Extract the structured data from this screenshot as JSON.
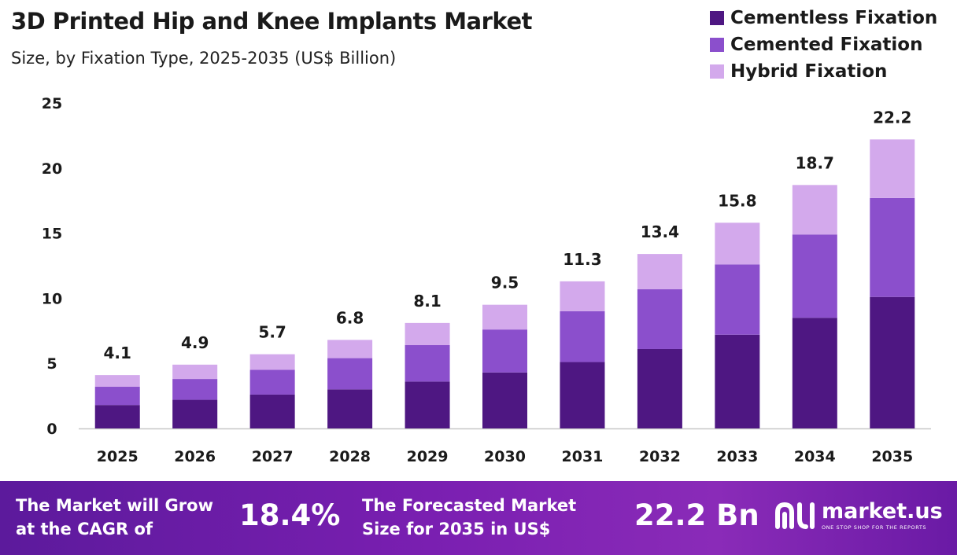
{
  "header": {
    "title": "3D Printed Hip and Knee Implants Market",
    "subtitle": "Size, by Fixation Type, 2025-2035 (US$ Billion)"
  },
  "legend": [
    {
      "label": "Cementless Fixation",
      "color": "#4e1782"
    },
    {
      "label": "Cemented Fixation",
      "color": "#8b4fcc"
    },
    {
      "label": "Hybrid Fixation",
      "color": "#d3a9ec"
    }
  ],
  "chart_data": {
    "type": "bar",
    "stacked": true,
    "title": "3D Printed Hip and Knee Implants Market",
    "subtitle": "Size, by Fixation Type, 2025-2035 (US$ Billion)",
    "categories": [
      "2025",
      "2026",
      "2027",
      "2028",
      "2029",
      "2030",
      "2031",
      "2032",
      "2033",
      "2034",
      "2035"
    ],
    "series": [
      {
        "name": "Cementless Fixation",
        "color": "#4e1782",
        "values": [
          1.8,
          2.2,
          2.6,
          3.0,
          3.6,
          4.3,
          5.1,
          6.1,
          7.2,
          8.5,
          10.1
        ]
      },
      {
        "name": "Cemented Fixation",
        "color": "#8b4fcc",
        "values": [
          1.4,
          1.6,
          1.9,
          2.4,
          2.8,
          3.3,
          3.9,
          4.6,
          5.4,
          6.4,
          7.6
        ]
      },
      {
        "name": "Hybrid Fixation",
        "color": "#d3a9ec",
        "values": [
          0.9,
          1.1,
          1.2,
          1.4,
          1.7,
          1.9,
          2.3,
          2.7,
          3.2,
          3.8,
          4.5
        ]
      }
    ],
    "totals": [
      "4.1",
      "4.9",
      "5.7",
      "6.8",
      "8.1",
      "9.5",
      "11.3",
      "13.4",
      "15.8",
      "18.7",
      "22.2"
    ],
    "y_ticks": [
      "0",
      "5",
      "10",
      "15",
      "20",
      "25"
    ],
    "ylim": [
      0,
      25
    ],
    "xlabel": "",
    "ylabel": "",
    "grid": false,
    "legend_position": "top-right"
  },
  "footer": {
    "cagr_label_line1": "The Market will Grow",
    "cagr_label_line2": "at the CAGR of",
    "cagr_value": "18.4%",
    "forecast_label_line1": "The Forecasted Market",
    "forecast_label_line2": "Size for 2035 in US$",
    "forecast_value": "22.2 Bn",
    "brand_name": "market.us",
    "brand_tagline": "ONE STOP SHOP FOR THE REPORTS"
  }
}
